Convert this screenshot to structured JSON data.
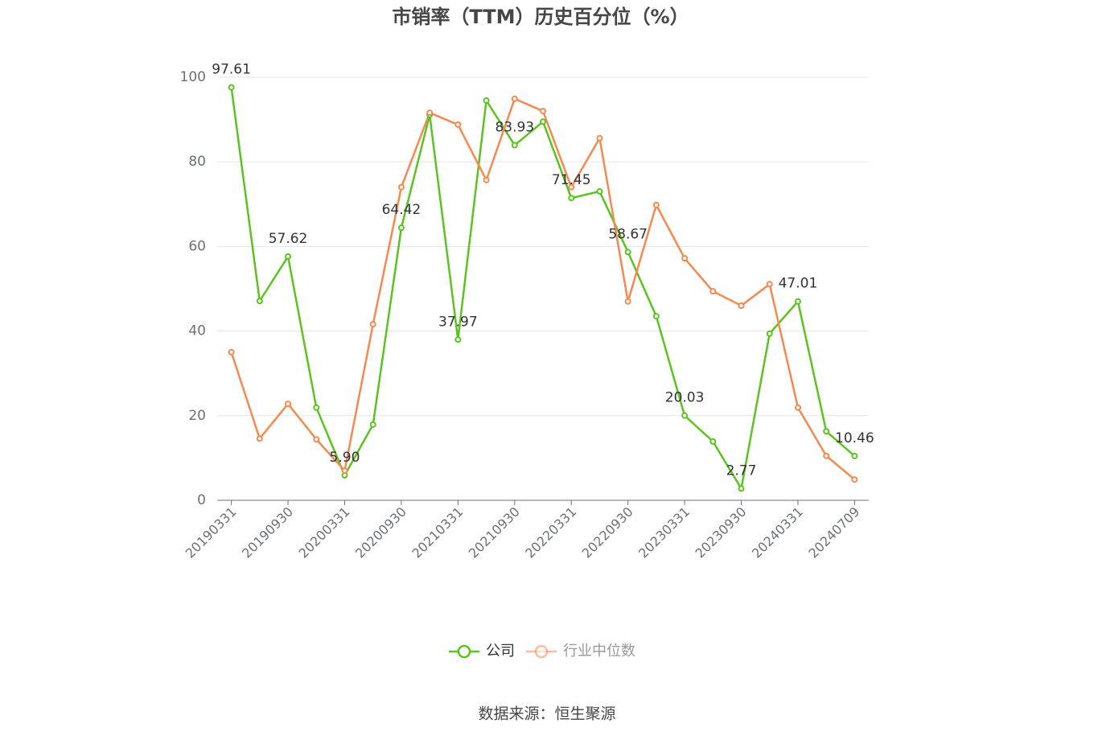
{
  "chart_data": {
    "type": "line",
    "title": "市销率（TTM）历史百分位（%）",
    "source": "数据来源：恒生聚源",
    "categories": [
      "20190331",
      null,
      "20190930",
      null,
      "20200331",
      null,
      "20200930",
      null,
      "20210331",
      null,
      "20210930",
      null,
      "20220331",
      null,
      "20220930",
      null,
      "20230331",
      null,
      "20230930",
      null,
      "20240331",
      null,
      "20240709"
    ],
    "series": [
      {
        "name": "公司",
        "color": "#5bc31f",
        "values": [
          97.61,
          47.1,
          57.62,
          21.9,
          5.9,
          17.9,
          64.42,
          91.1,
          37.97,
          94.5,
          83.93,
          89.5,
          71.45,
          73.0,
          58.67,
          43.5,
          20.03,
          13.9,
          2.77,
          39.4,
          47.01,
          16.3,
          10.46
        ],
        "value_labels": [
          "97.61",
          null,
          "57.62",
          null,
          "5.90",
          null,
          "64.42",
          null,
          "37.97",
          null,
          "83.93",
          null,
          "71.45",
          null,
          "58.67",
          null,
          "20.03",
          null,
          "2.77",
          null,
          "47.01",
          null,
          "10.46"
        ]
      },
      {
        "name": "行业中位数",
        "color": "#f5894f",
        "values": [
          35.0,
          14.6,
          22.8,
          14.4,
          7.0,
          41.6,
          74.0,
          91.6,
          88.8,
          75.7,
          94.9,
          92.0,
          74.0,
          85.6,
          47.0,
          69.8,
          57.2,
          49.4,
          46.0,
          51.1,
          21.9,
          10.5,
          4.9
        ]
      }
    ],
    "ylim": [
      0,
      100
    ],
    "yticks": [
      0,
      20,
      40,
      60,
      80,
      100
    ],
    "grid": true,
    "legend": "bottom"
  }
}
